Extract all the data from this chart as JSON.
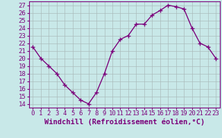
{
  "x": [
    0,
    1,
    2,
    3,
    4,
    5,
    6,
    7,
    8,
    9,
    10,
    11,
    12,
    13,
    14,
    15,
    16,
    17,
    18,
    19,
    20,
    21,
    22,
    23
  ],
  "y": [
    21.5,
    20.0,
    19.0,
    18.0,
    16.5,
    15.5,
    14.5,
    14.0,
    15.5,
    18.0,
    21.0,
    22.5,
    23.0,
    24.5,
    24.5,
    25.7,
    26.3,
    27.0,
    26.8,
    26.5,
    24.0,
    22.0,
    21.5,
    20.0
  ],
  "line_color": "#7B007B",
  "marker": "+",
  "markersize": 4,
  "linewidth": 1.0,
  "background_color": "#c8e8e8",
  "grid_color": "#aabbbb",
  "xlabel": "Windchill (Refroidissement éolien,°C)",
  "xlabel_fontsize": 7.5,
  "ylabel_ticks": [
    14,
    15,
    16,
    17,
    18,
    19,
    20,
    21,
    22,
    23,
    24,
    25,
    26,
    27
  ],
  "xlim": [
    -0.5,
    23.5
  ],
  "ylim": [
    13.5,
    27.5
  ],
  "tick_fontsize": 6.5,
  "xticks": [
    0,
    1,
    2,
    3,
    4,
    5,
    6,
    7,
    8,
    9,
    10,
    11,
    12,
    13,
    14,
    15,
    16,
    17,
    18,
    19,
    20,
    21,
    22,
    23
  ]
}
